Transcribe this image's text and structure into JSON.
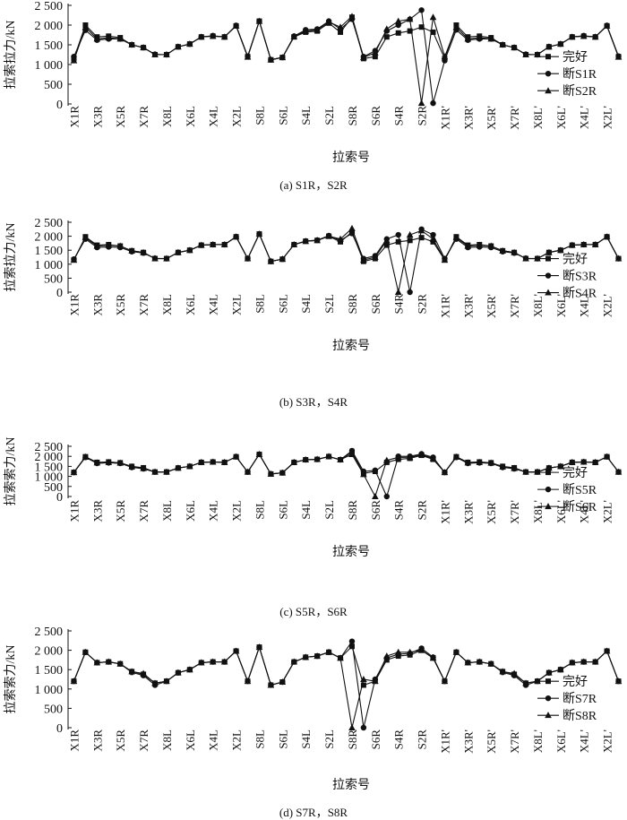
{
  "figure": {
    "captions": [
      "(a) S1R，S2R",
      "(b) S3R，S4R",
      "(c) S5R，S6R",
      "(d) S7R，S8R"
    ]
  },
  "chart_data": [
    {
      "type": "line",
      "panel": "a",
      "title": "",
      "caption": "(a) S1R，S2R",
      "xlabel": "拉索号",
      "ylabel": "拉索拉力/kN",
      "ylim": [
        0,
        2500
      ],
      "yticks": [
        0,
        500,
        1000,
        1500,
        2000,
        2500
      ],
      "ytick_labels": [
        "0",
        "500",
        "1 000",
        "1 500",
        "2 000",
        "2 500"
      ],
      "xtick_labels": [
        "X1R",
        "X3R",
        "X5R",
        "X7R",
        "X8L",
        "X6L",
        "X4L",
        "X2L",
        "S8L",
        "S6L",
        "S4L",
        "S2L",
        "S8R",
        "S6R",
        "S4R",
        "S2R",
        "X1R'",
        "X3R'",
        "X5R'",
        "X7R'",
        "X8L'",
        "X6L'",
        "X4L'",
        "X2L'"
      ],
      "legend_position": "center-right",
      "series": [
        {
          "name": "完好",
          "marker": "square",
          "values": [
            1150,
            2000,
            1700,
            1720,
            1680,
            1500,
            1430,
            1250,
            1250,
            1450,
            1520,
            1700,
            1720,
            1700,
            1980,
            1200,
            2100,
            1120,
            1180,
            1700,
            1820,
            1850,
            2050,
            1820,
            2200,
            1150,
            1200,
            1700,
            1800,
            1850,
            1950,
            1820,
            1150,
            2000,
            1700,
            1720,
            1680,
            1500,
            1430,
            1250,
            1250,
            1450,
            1520,
            1700,
            1720,
            1700,
            1980,
            1200
          ]
        },
        {
          "name": "断S1R",
          "marker": "circle",
          "values": [
            1200,
            1870,
            1620,
            1650,
            1650,
            1500,
            1430,
            1260,
            1250,
            1450,
            1520,
            1700,
            1730,
            1700,
            1990,
            1210,
            2100,
            1120,
            1180,
            1720,
            1880,
            1900,
            2100,
            1900,
            2150,
            1200,
            1350,
            1850,
            2000,
            2150,
            2380,
            20,
            1100,
            1880,
            1620,
            1650,
            1650,
            1500,
            1430,
            1260,
            1250,
            1450,
            1520,
            1700,
            1730,
            1700,
            1990,
            1210
          ]
        },
        {
          "name": "断S2R",
          "marker": "triangle",
          "values": [
            1100,
            1950,
            1650,
            1680,
            1650,
            1500,
            1430,
            1250,
            1250,
            1450,
            1520,
            1700,
            1720,
            1700,
            1980,
            1190,
            2100,
            1120,
            1180,
            1710,
            1850,
            1880,
            2080,
            1950,
            2220,
            1180,
            1300,
            1900,
            2100,
            2150,
            20,
            2200,
            1200,
            1950,
            1650,
            1680,
            1650,
            1500,
            1430,
            1250,
            1250,
            1450,
            1520,
            1700,
            1720,
            1700,
            1980,
            1190
          ]
        }
      ]
    },
    {
      "type": "line",
      "panel": "b",
      "title": "",
      "caption": "(b) S3R，S4R",
      "xlabel": "拉索号",
      "ylabel": "拉索拉力/kN",
      "ylim": [
        0,
        2500
      ],
      "yticks": [
        0,
        500,
        1000,
        1500,
        2000,
        2500
      ],
      "ytick_labels": [
        "0",
        "500",
        "1 000",
        "1 500",
        "2 000",
        "2 500"
      ],
      "xtick_labels": [
        "X1R",
        "X3R",
        "X5R",
        "X7R",
        "X8L",
        "X6L",
        "X4L",
        "X2L",
        "S8L",
        "S6L",
        "S4L",
        "S2L",
        "S8R",
        "S6R",
        "S4R",
        "S2R",
        "X1R'",
        "X3R'",
        "X5R'",
        "X7R'",
        "X8L'",
        "X6L'",
        "X4L'",
        "X2L'"
      ],
      "legend_position": "center-right",
      "series": [
        {
          "name": "完好",
          "marker": "square",
          "values": [
            1150,
            1980,
            1680,
            1700,
            1650,
            1480,
            1420,
            1200,
            1200,
            1420,
            1500,
            1680,
            1700,
            1700,
            1980,
            1200,
            2080,
            1100,
            1180,
            1700,
            1820,
            1850,
            2000,
            1800,
            2150,
            1100,
            1200,
            1680,
            1800,
            1850,
            1950,
            1800,
            1150,
            1980,
            1680,
            1700,
            1650,
            1480,
            1420,
            1200,
            1200,
            1420,
            1500,
            1680,
            1700,
            1700,
            1980,
            1200
          ]
        },
        {
          "name": "断S3R",
          "marker": "circle",
          "values": [
            1180,
            1900,
            1600,
            1620,
            1600,
            1450,
            1400,
            1210,
            1200,
            1420,
            1500,
            1680,
            1700,
            1700,
            1980,
            1200,
            2080,
            1100,
            1180,
            1700,
            1830,
            1860,
            2020,
            1850,
            2100,
            1200,
            1300,
            1900,
            2050,
            0,
            2250,
            2050,
            1200,
            1900,
            1600,
            1620,
            1600,
            1450,
            1400,
            1210,
            1200,
            1420,
            1500,
            1680,
            1700,
            1700,
            1980,
            1200
          ]
        },
        {
          "name": "断S4R",
          "marker": "triangle",
          "values": [
            1150,
            1950,
            1650,
            1680,
            1650,
            1480,
            1420,
            1200,
            1200,
            1420,
            1500,
            1680,
            1700,
            1700,
            1980,
            1200,
            2080,
            1100,
            1180,
            1700,
            1820,
            1850,
            2000,
            1900,
            2280,
            1150,
            1250,
            1850,
            0,
            2050,
            2200,
            1900,
            1150,
            1950,
            1650,
            1680,
            1650,
            1480,
            1420,
            1200,
            1200,
            1420,
            1500,
            1680,
            1700,
            1700,
            1980,
            1200
          ]
        }
      ]
    },
    {
      "type": "line",
      "panel": "c",
      "title": "",
      "caption": "(c) S5R，S6R",
      "xlabel": "拉索号",
      "ylabel": "拉索索力/kN",
      "ylim": [
        0,
        2500
      ],
      "yticks": [
        0,
        500,
        1000,
        1500,
        2000,
        2500
      ],
      "ytick_labels": [
        "0",
        "500",
        "1 000",
        "1 500",
        "2 000",
        "2 500"
      ],
      "xtick_labels": [
        "X1R",
        "X3R",
        "X5R",
        "X7R",
        "X8L",
        "X6L",
        "X4L",
        "X2L",
        "S8L",
        "S6L",
        "S4L",
        "S2L",
        "S8R",
        "S6R",
        "S4R",
        "S2R",
        "X1R'",
        "X3R'",
        "X5R'",
        "X7R'",
        "X8L'",
        "X6L'",
        "X4L'",
        "X2L'"
      ],
      "legend_position": "center-right",
      "series": [
        {
          "name": "完好",
          "marker": "square",
          "values": [
            1200,
            1980,
            1700,
            1720,
            1680,
            1500,
            1430,
            1220,
            1220,
            1420,
            1500,
            1700,
            1720,
            1700,
            1980,
            1220,
            2100,
            1120,
            1180,
            1700,
            1830,
            1850,
            1990,
            1830,
            2200,
            1150,
            1250,
            1700,
            1850,
            1900,
            2050,
            1850,
            1200,
            1980,
            1700,
            1720,
            1680,
            1500,
            1430,
            1220,
            1220,
            1420,
            1500,
            1700,
            1720,
            1700,
            1980,
            1220
          ]
        },
        {
          "name": "断S5R",
          "marker": "circle",
          "values": [
            1200,
            1950,
            1650,
            1680,
            1650,
            1450,
            1380,
            1220,
            1220,
            1420,
            1500,
            1700,
            1720,
            1700,
            1980,
            1220,
            2100,
            1120,
            1180,
            1700,
            1830,
            1850,
            1990,
            1830,
            2280,
            1250,
            1300,
            0,
            2000,
            2000,
            2120,
            1950,
            1200,
            1950,
            1650,
            1680,
            1650,
            1450,
            1380,
            1220,
            1220,
            1420,
            1500,
            1700,
            1720,
            1700,
            1980,
            1220
          ]
        },
        {
          "name": "断S6R",
          "marker": "triangle",
          "values": [
            1200,
            1970,
            1680,
            1700,
            1670,
            1480,
            1400,
            1220,
            1220,
            1420,
            1500,
            1700,
            1720,
            1700,
            1980,
            1220,
            2100,
            1120,
            1180,
            1700,
            1830,
            1850,
            1990,
            1830,
            2100,
            1100,
            0,
            1800,
            1950,
            1950,
            2080,
            1900,
            1200,
            1970,
            1680,
            1700,
            1670,
            1480,
            1400,
            1220,
            1220,
            1420,
            1500,
            1700,
            1720,
            1700,
            1980,
            1220
          ]
        }
      ]
    },
    {
      "type": "line",
      "panel": "d",
      "title": "",
      "caption": "(d) S7R，S8R",
      "xlabel": "拉索号",
      "ylabel": "拉索索力/kN",
      "ylim": [
        0,
        2500
      ],
      "yticks": [
        0,
        500,
        1000,
        1500,
        2000,
        2500
      ],
      "ytick_labels": [
        "0",
        "500",
        "1 000",
        "1 500",
        "2 000",
        "2 500"
      ],
      "xtick_labels": [
        "X1R",
        "X3R",
        "X5R",
        "X7R",
        "X8L",
        "X6L",
        "X4L",
        "X2L",
        "S8L",
        "S6L",
        "S4L",
        "S2L",
        "S8R",
        "S6R",
        "S4R",
        "S2R",
        "X1R'",
        "X3R'",
        "X5R'",
        "X7R'",
        "X8L'",
        "X6L'",
        "X4L'",
        "X2L'"
      ],
      "legend_position": "center-right",
      "series": [
        {
          "name": "完好",
          "marker": "square",
          "values": [
            1200,
            1950,
            1680,
            1700,
            1650,
            1450,
            1380,
            1150,
            1200,
            1420,
            1500,
            1680,
            1700,
            1700,
            1980,
            1200,
            2080,
            1100,
            1180,
            1700,
            1820,
            1850,
            1950,
            1800,
            2100,
            1100,
            1200,
            1750,
            1850,
            1880,
            2000,
            1800,
            1200,
            1950,
            1680,
            1700,
            1650,
            1450,
            1380,
            1150,
            1200,
            1420,
            1500,
            1680,
            1700,
            1700,
            1980,
            1200
          ]
        },
        {
          "name": "断S7R",
          "marker": "circle",
          "values": [
            1200,
            1950,
            1680,
            1700,
            1650,
            1430,
            1350,
            1100,
            1200,
            1420,
            1500,
            1680,
            1700,
            1700,
            1980,
            1200,
            2080,
            1100,
            1180,
            1700,
            1820,
            1850,
            1950,
            1800,
            2230,
            0,
            1250,
            1800,
            1900,
            1920,
            2050,
            1820,
            1200,
            1950,
            1680,
            1700,
            1650,
            1430,
            1350,
            1100,
            1200,
            1420,
            1500,
            1680,
            1700,
            1700,
            1980,
            1200
          ]
        },
        {
          "name": "断S8R",
          "marker": "triangle",
          "values": [
            1200,
            1950,
            1680,
            1700,
            1650,
            1450,
            1400,
            1150,
            1200,
            1420,
            1500,
            1680,
            1700,
            1700,
            1980,
            1200,
            2080,
            1100,
            1180,
            1700,
            1820,
            1850,
            1950,
            1800,
            0,
            1250,
            1200,
            1850,
            1950,
            1950,
            2000,
            1800,
            1200,
            1950,
            1680,
            1700,
            1650,
            1450,
            1400,
            1150,
            1200,
            1420,
            1500,
            1680,
            1700,
            1700,
            1980,
            1200
          ]
        }
      ]
    }
  ]
}
